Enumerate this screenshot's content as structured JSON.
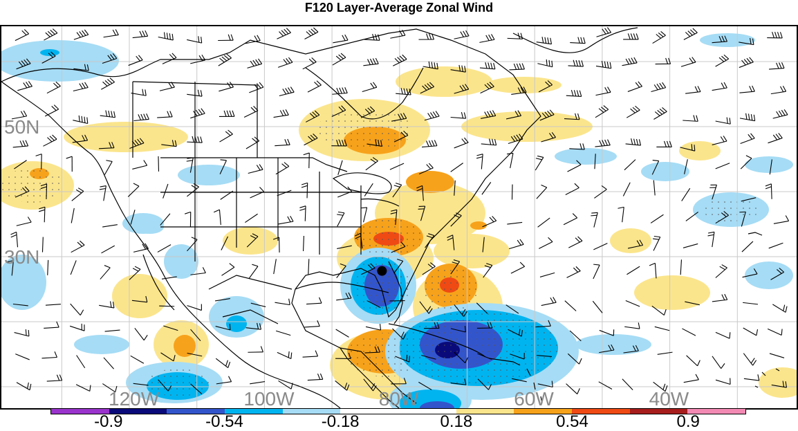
{
  "title": "F120 Layer-Average Zonal Wind",
  "map": {
    "lat_labels": [
      {
        "text": "50N",
        "lat": 50
      },
      {
        "text": "30N",
        "lat": 30
      }
    ],
    "lon_labels": [
      {
        "text": "120W",
        "lon": -120
      },
      {
        "text": "100W",
        "lon": -100
      },
      {
        "text": "80W",
        "lon": -80
      },
      {
        "text": "60W",
        "lon": -60
      },
      {
        "text": "40W",
        "lon": -40
      }
    ],
    "marker": {
      "name": "point-marker",
      "lat": 27.8,
      "lon": -82.6
    }
  },
  "colorbar": {
    "colors": [
      "#9933cc",
      "#0a0a7a",
      "#3355cc",
      "#00b4f0",
      "#a6dcf5",
      "#ffffff",
      "#ffffff",
      "#fbe58c",
      "#f7a21b",
      "#ef4a13",
      "#a71d1d",
      "#f28ab4"
    ],
    "tick_labels": [
      {
        "text": "-0.9",
        "pos": 1
      },
      {
        "text": "-0.54",
        "pos": 3
      },
      {
        "text": "-0.18",
        "pos": 5
      },
      {
        "text": "0.18",
        "pos": 7
      },
      {
        "text": "0.54",
        "pos": 9
      },
      {
        "text": "0.9",
        "pos": 11
      }
    ]
  }
}
